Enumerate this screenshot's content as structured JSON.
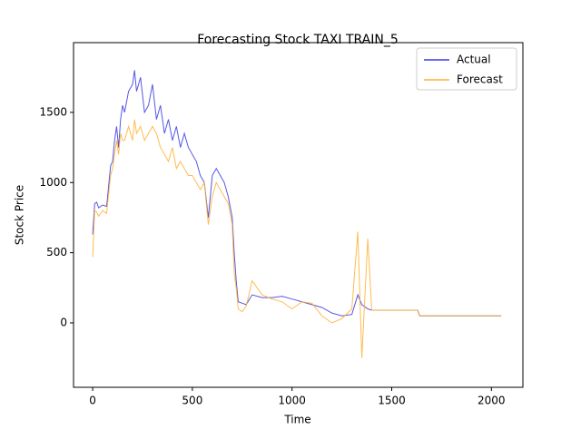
{
  "chart_data": {
    "type": "line",
    "title": "Forecasting Stock TAXI TRAIN_5",
    "xlabel": "Time",
    "ylabel": "Stock Price",
    "x": [
      0,
      10,
      20,
      30,
      50,
      70,
      90,
      100,
      110,
      120,
      130,
      140,
      150,
      160,
      180,
      200,
      210,
      220,
      240,
      260,
      280,
      300,
      320,
      340,
      360,
      380,
      400,
      420,
      440,
      460,
      480,
      500,
      520,
      540,
      560,
      580,
      600,
      620,
      640,
      660,
      680,
      700,
      710,
      720,
      730,
      750,
      770,
      800,
      850,
      900,
      950,
      1000,
      1050,
      1100,
      1150,
      1200,
      1250,
      1300,
      1330,
      1350,
      1380,
      1400,
      1630,
      1640,
      2050
    ],
    "series": [
      {
        "name": "Actual",
        "color": "#3a3ae0",
        "values": [
          630,
          850,
          860,
          820,
          840,
          830,
          1120,
          1150,
          1300,
          1400,
          1250,
          1450,
          1550,
          1500,
          1650,
          1700,
          1800,
          1650,
          1750,
          1500,
          1550,
          1700,
          1450,
          1550,
          1350,
          1450,
          1300,
          1400,
          1250,
          1350,
          1250,
          1200,
          1150,
          1050,
          1000,
          750,
          1050,
          1100,
          1050,
          1000,
          900,
          750,
          500,
          300,
          150,
          140,
          130,
          200,
          180,
          180,
          190,
          170,
          150,
          130,
          110,
          70,
          50,
          60,
          200,
          130,
          100,
          90,
          90,
          50,
          50
        ]
      },
      {
        "name": "Forecast",
        "color": "#ffb030",
        "values": [
          470,
          800,
          790,
          760,
          800,
          780,
          1050,
          1100,
          1200,
          1300,
          1200,
          1350,
          1300,
          1300,
          1400,
          1300,
          1450,
          1350,
          1400,
          1300,
          1350,
          1400,
          1350,
          1250,
          1200,
          1150,
          1250,
          1100,
          1150,
          1100,
          1050,
          1050,
          1000,
          950,
          1000,
          700,
          900,
          1000,
          950,
          900,
          850,
          700,
          350,
          250,
          100,
          80,
          120,
          300,
          200,
          170,
          150,
          100,
          150,
          140,
          50,
          0,
          30,
          100,
          650,
          -250,
          600,
          90,
          90,
          50,
          50
        ]
      }
    ],
    "xlim": [
      -96,
      2158
    ],
    "ylim": [
      -459,
      1997
    ],
    "xticks": [
      0,
      500,
      1000,
      1500,
      2000
    ],
    "yticks": [
      0,
      500,
      1000,
      1500
    ],
    "legend": "upper right"
  }
}
